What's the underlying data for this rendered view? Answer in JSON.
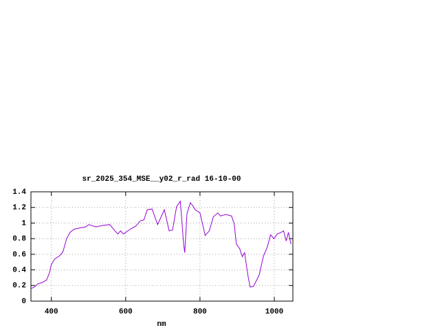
{
  "chart_data": {
    "type": "line",
    "title": "sr_2025_354_MSE__y02_r_rad 16-10-00",
    "x_label": "nm",
    "xlim": [
      345,
      1050
    ],
    "xticks": [
      400,
      600,
      800,
      1000
    ],
    "ylim": [
      0,
      1.4
    ],
    "yticks": [
      0,
      0.2,
      0.4,
      0.6,
      0.8,
      1,
      1.2,
      1.4
    ],
    "grid": true,
    "x": [
      345,
      354,
      363,
      376,
      387,
      394,
      400,
      409,
      422,
      431,
      441,
      450,
      461,
      479,
      492,
      501,
      520,
      538,
      557,
      571,
      579,
      586,
      594,
      612,
      627,
      640,
      649,
      658,
      671,
      686,
      704,
      717,
      726,
      737,
      747,
      756,
      759,
      765,
      774,
      781,
      787,
      800,
      814,
      825,
      836,
      848,
      855,
      870,
      885,
      892,
      898,
      907,
      914,
      920,
      929,
      935,
      944,
      959,
      971,
      981,
      990,
      999,
      1008,
      1018,
      1025,
      1032,
      1038,
      1045
    ],
    "series": [
      {
        "color": "#9400d3",
        "values": [
          0.16,
          0.18,
          0.22,
          0.24,
          0.27,
          0.35,
          0.47,
          0.54,
          0.58,
          0.63,
          0.8,
          0.88,
          0.92,
          0.94,
          0.95,
          0.98,
          0.95,
          0.97,
          0.98,
          0.9,
          0.86,
          0.9,
          0.86,
          0.92,
          0.96,
          1.03,
          1.04,
          1.17,
          1.18,
          0.98,
          1.17,
          0.9,
          0.91,
          1.21,
          1.28,
          0.73,
          0.62,
          1.12,
          1.26,
          1.22,
          1.17,
          1.13,
          0.84,
          0.9,
          1.08,
          1.13,
          1.09,
          1.11,
          1.09,
          0.99,
          0.73,
          0.67,
          0.57,
          0.62,
          0.33,
          0.18,
          0.19,
          0.33,
          0.58,
          0.69,
          0.85,
          0.8,
          0.86,
          0.88,
          0.9,
          0.77,
          0.88,
          0.73
        ]
      }
    ]
  }
}
